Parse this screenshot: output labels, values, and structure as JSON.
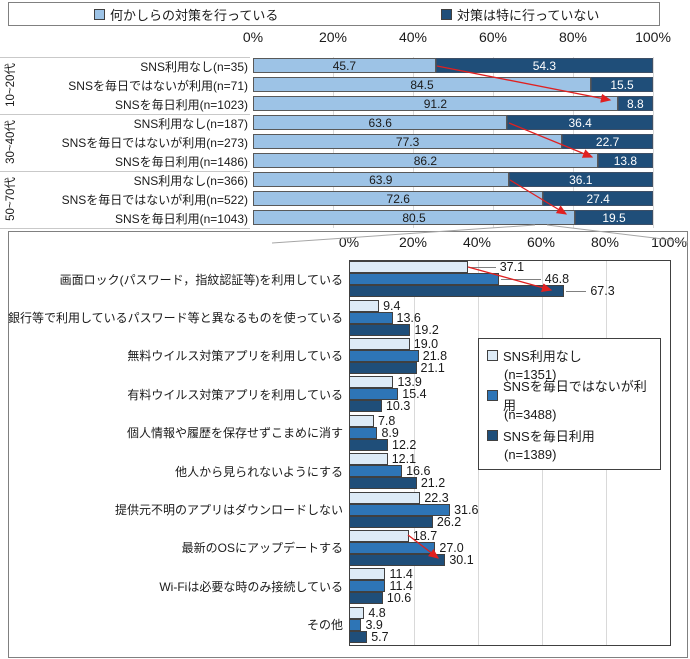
{
  "colors": {
    "top_light": "#9DC3E6",
    "navy": "#1F4E79",
    "bottom_light": "#DDEBF7",
    "bottom_mid": "#2E75B6",
    "annotation_red": "#E02020",
    "connector_gray": "#A6A6A6"
  },
  "chart_data": [
    {
      "type": "bar",
      "subtype": "horizontal-stacked",
      "ticks": [
        "0%",
        "20%",
        "40%",
        "60%",
        "80%",
        "100%"
      ],
      "xlim": [
        0,
        100
      ],
      "group_labels": [
        "10~20代",
        "30~40代",
        "50~70代"
      ],
      "categories": [
        "SNS利用なし(n=35)",
        "SNSを毎日ではないが利用(n=71)",
        "SNSを毎日利用(n=1023)",
        "SNS利用なし(n=187)",
        "SNSを毎日ではないが利用(n=273)",
        "SNSを毎日利用(n=1486)",
        "SNS利用なし(n=366)",
        "SNSを毎日ではないが利用(n=522)",
        "SNSを毎日利用(n=1043)"
      ],
      "series": [
        {
          "name": "何かしらの対策を行っている",
          "color": "#9DC3E6",
          "values": [
            45.7,
            84.5,
            91.2,
            63.6,
            77.3,
            86.2,
            63.9,
            72.6,
            80.5
          ]
        },
        {
          "name": "対策は特に行っていない",
          "color": "#1F4E79",
          "values": [
            54.3,
            15.5,
            8.8,
            36.4,
            22.7,
            13.8,
            36.1,
            27.4,
            19.5
          ]
        }
      ]
    },
    {
      "type": "bar",
      "subtype": "horizontal-grouped",
      "ticks": [
        "0%",
        "20%",
        "40%",
        "60%",
        "80%",
        "100%"
      ],
      "xlim": [
        0,
        100
      ],
      "categories": [
        "画面ロック(パスワード，指紋認証等)を利用している",
        "銀行等で利用しているパスワード等と異なるものを使っている",
        "無料ウイルス対策アプリを利用している",
        "有料ウイルス対策アプリを利用している",
        "個人情報や履歴を保存せずこまめに消す",
        "他人から見られないようにする",
        "提供元不明のアプリはダウンロードしない",
        "最新のOSにアップデートする",
        "Wi-Fiは必要な時のみ接続している",
        "その他"
      ],
      "series": [
        {
          "name": "SNS利用なし",
          "n_label": "(n=1351)",
          "color": "#DDEBF7",
          "values": [
            37.1,
            9.4,
            19.0,
            13.9,
            7.8,
            12.1,
            22.3,
            18.7,
            11.4,
            4.8
          ]
        },
        {
          "name": "SNSを毎日ではないが利用",
          "n_label": "(n=3488)",
          "color": "#2E75B6",
          "values": [
            46.8,
            13.6,
            21.8,
            15.4,
            8.9,
            16.6,
            31.6,
            27.0,
            11.4,
            3.9
          ]
        },
        {
          "name": "SNSを毎日利用",
          "n_label": "(n=1389)",
          "color": "#1F4E79",
          "values": [
            67.3,
            19.2,
            21.1,
            10.3,
            12.2,
            21.2,
            26.2,
            30.1,
            10.6,
            5.7
          ]
        }
      ]
    }
  ]
}
